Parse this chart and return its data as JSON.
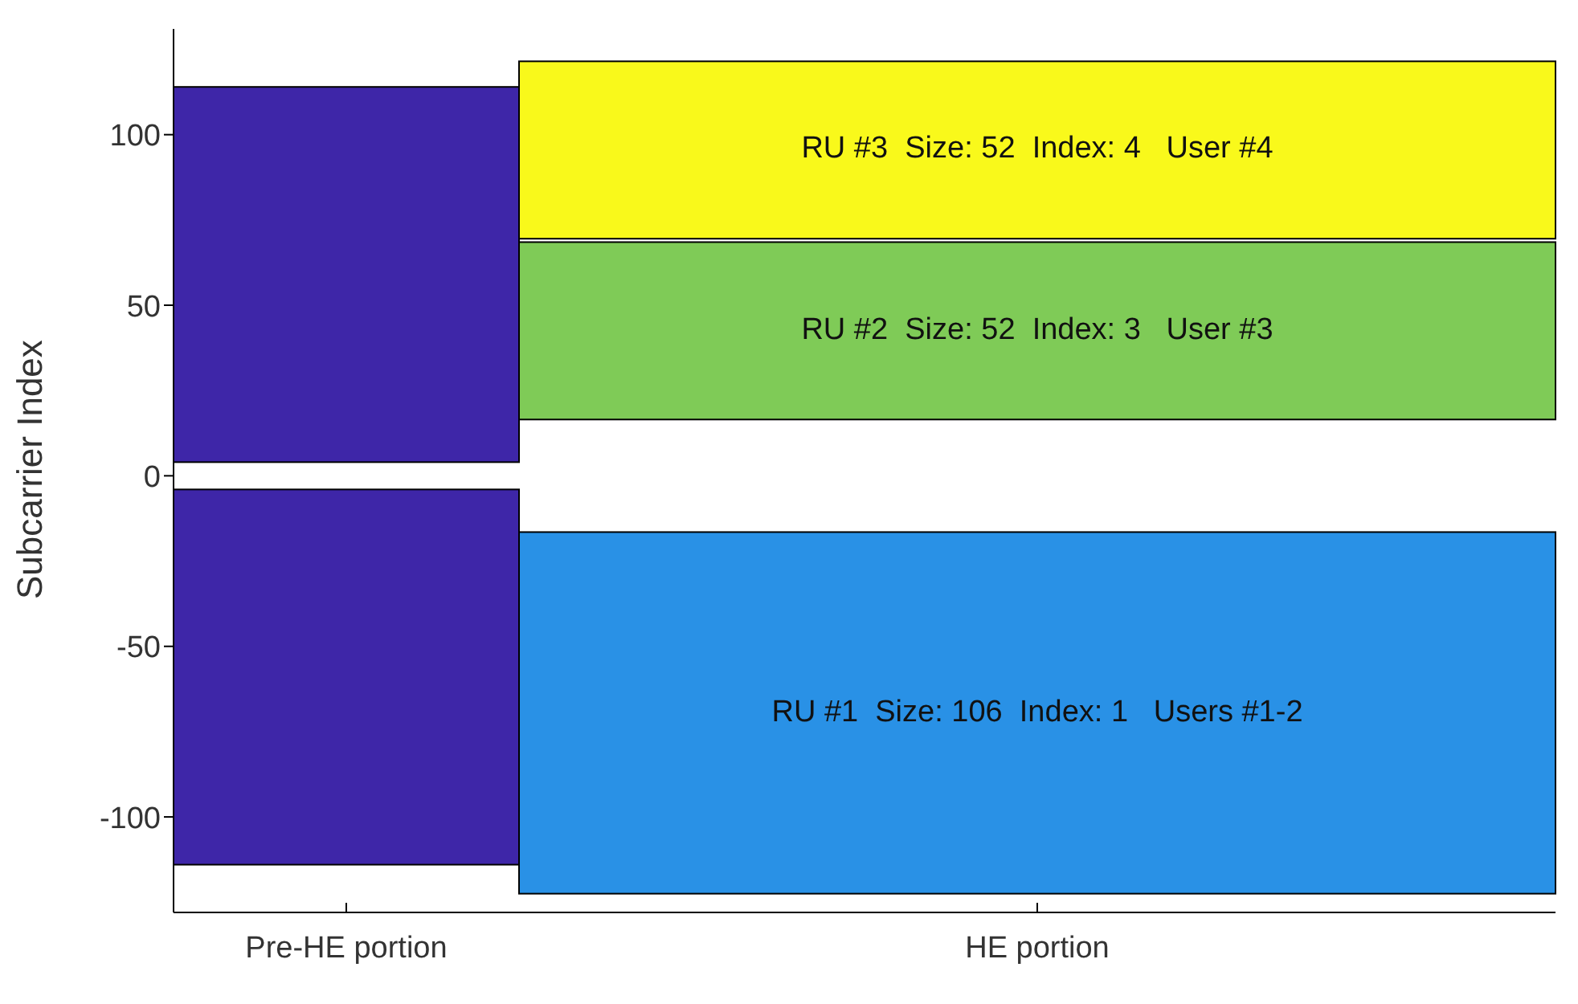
{
  "chart_data": {
    "type": "bar",
    "ylabel": "Subcarrier Index",
    "categories": [
      "Pre-HE portion",
      "HE portion"
    ],
    "series": [
      {
        "color": "#3e26a8",
        "values": [
          110,
          null
        ],
        "base": [
          4,
          null
        ]
      },
      {
        "color": "#3e26a8",
        "values": [
          110,
          null
        ],
        "base": [
          -114,
          null
        ]
      },
      {
        "color": "#2991e6",
        "values": [
          null,
          106
        ],
        "base": [
          null,
          -122.5
        ]
      },
      {
        "color": "#7fcb57",
        "values": [
          null,
          52
        ],
        "base": [
          null,
          16.5
        ]
      },
      {
        "color": "#f9f91b",
        "values": [
          null,
          52
        ],
        "base": [
          null,
          69.5
        ]
      }
    ],
    "ylim": [
      -128,
      131
    ],
    "yticks": [
      -100,
      -50,
      0,
      50,
      100
    ],
    "annotations": [
      "RU #3  Size: 52  Index: 4   User #4",
      "RU #2  Size: 52  Index: 3   User #3",
      "RU #1  Size: 106  Index: 1   Users #1-2"
    ]
  }
}
